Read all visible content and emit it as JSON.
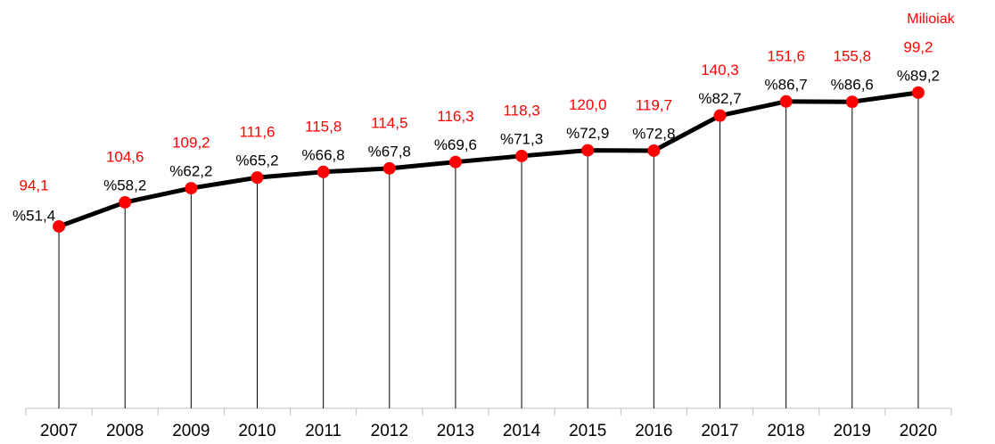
{
  "chart_data": {
    "type": "line",
    "categories": [
      "2007",
      "2008",
      "2009",
      "2010",
      "2011",
      "2012",
      "2013",
      "2014",
      "2015",
      "2016",
      "2017",
      "2018",
      "2019",
      "2020"
    ],
    "series": [
      {
        "color": "#000000",
        "marker_color": "#ff0000",
        "values": [
          51.4,
          58.2,
          62.2,
          65.2,
          66.8,
          67.8,
          69.6,
          71.3,
          72.9,
          72.8,
          82.7,
          86.7,
          86.6,
          89.2
        ],
        "value_labels": [
          "%51,4",
          "%58,2",
          "%62,2",
          "%65,2",
          "%66,8",
          "%67,8",
          "%69,6",
          "%71,3",
          "%72,9",
          "%72,8",
          "%82,7",
          "%86,7",
          "%86,6",
          "%89,2"
        ]
      },
      {
        "name": "Milioiak",
        "color": "#ff0000",
        "values": [
          94.1,
          104.6,
          109.2,
          111.6,
          115.8,
          114.5,
          116.3,
          118.3,
          120.0,
          119.7,
          140.3,
          151.6,
          155.8,
          99.2
        ],
        "value_labels": [
          "94,1",
          "104,6",
          "109,2",
          "111,6",
          "115,8",
          "114,5",
          "116,3",
          "118,3",
          "120,0",
          "119,7",
          "140,3",
          "151,6",
          "155,8",
          "99,2"
        ]
      }
    ],
    "ylim": [
      0,
      100
    ]
  }
}
